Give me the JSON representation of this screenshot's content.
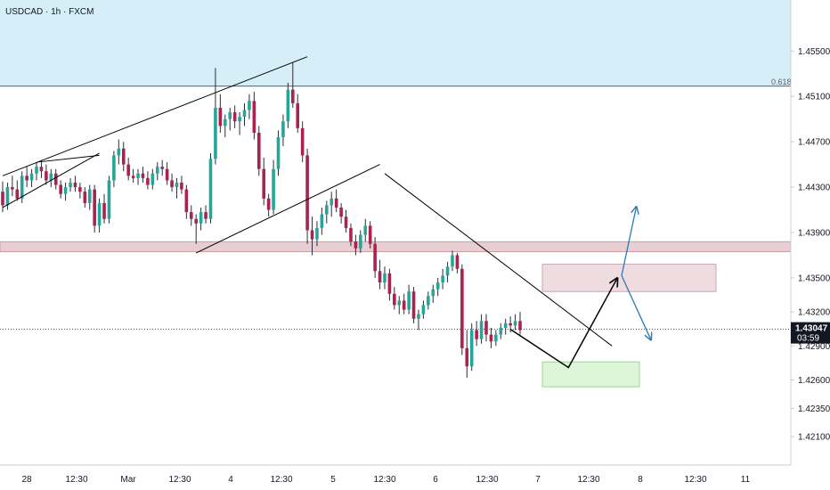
{
  "ticker": "USDCAD · 1h · FXCM",
  "colors": {
    "up": "#26a69a",
    "down": "#a8234f",
    "wick": "#2a2e39",
    "fib_zone": "#d5eef7",
    "resistance_band": "#e8cdd2",
    "supply_box": "#efdce0",
    "demand_box": "#dcf5d6",
    "arrow": "#2a7ab7",
    "path": "#000000",
    "price_tag": "#131722"
  },
  "chart_data": {
    "type": "candlestick",
    "ylim": [
      1.4185,
      1.4595
    ],
    "y_ticks": [
      "1.45500",
      "1.45100",
      "1.44700",
      "1.44300",
      "1.43900",
      "1.43500",
      "1.43200",
      "1.42900",
      "1.42600",
      "1.42350",
      "1.42100"
    ],
    "x_ticks": [
      "28",
      "12:30",
      "Mar",
      "12:30",
      "4",
      "12:30",
      "5",
      "12:30",
      "6",
      "12:30",
      "7",
      "12:30",
      "8",
      "12:30",
      "11"
    ],
    "fib_level": {
      "label": "0.618",
      "price": 1.4519
    },
    "current_price": {
      "label": "1.43047",
      "timer": "03:59",
      "value": 1.43047
    },
    "resistance_band": [
      1.4373,
      1.4382
    ],
    "supply_zone": [
      1.4338,
      1.4362
    ],
    "demand_zone": [
      1.4254,
      1.4276
    ],
    "candles": [
      [
        1.4426,
        1.4435,
        1.4408,
        1.4414
      ],
      [
        1.4414,
        1.4434,
        1.441,
        1.443
      ],
      [
        1.443,
        1.444,
        1.4422,
        1.4428
      ],
      [
        1.4428,
        1.4436,
        1.4418,
        1.442
      ],
      [
        1.442,
        1.4444,
        1.4416,
        1.444
      ],
      [
        1.444,
        1.4448,
        1.443,
        1.4436
      ],
      [
        1.4436,
        1.4446,
        1.443,
        1.4442
      ],
      [
        1.4442,
        1.4452,
        1.4436,
        1.4448
      ],
      [
        1.4448,
        1.4454,
        1.4438,
        1.4444
      ],
      [
        1.4444,
        1.445,
        1.4432,
        1.4436
      ],
      [
        1.4436,
        1.4446,
        1.443,
        1.4442
      ],
      [
        1.4442,
        1.4446,
        1.4428,
        1.4432
      ],
      [
        1.4432,
        1.4436,
        1.442,
        1.4424
      ],
      [
        1.4424,
        1.4434,
        1.4418,
        1.443
      ],
      [
        1.443,
        1.4438,
        1.4426,
        1.4434
      ],
      [
        1.4434,
        1.444,
        1.4426,
        1.443
      ],
      [
        1.443,
        1.4434,
        1.442,
        1.4426
      ],
      [
        1.4426,
        1.443,
        1.4412,
        1.4416
      ],
      [
        1.4416,
        1.4432,
        1.441,
        1.4428
      ],
      [
        1.4428,
        1.4432,
        1.439,
        1.4396
      ],
      [
        1.4396,
        1.442,
        1.439,
        1.4416
      ],
      [
        1.4416,
        1.4424,
        1.4398,
        1.4402
      ],
      [
        1.4402,
        1.444,
        1.4398,
        1.4436
      ],
      [
        1.4436,
        1.4462,
        1.443,
        1.4458
      ],
      [
        1.4458,
        1.4472,
        1.445,
        1.4464
      ],
      [
        1.4464,
        1.447,
        1.4444,
        1.445
      ],
      [
        1.445,
        1.4456,
        1.4436,
        1.444
      ],
      [
        1.444,
        1.4446,
        1.4434,
        1.4438
      ],
      [
        1.4438,
        1.4446,
        1.4432,
        1.4442
      ],
      [
        1.4442,
        1.4448,
        1.4434,
        1.4438
      ],
      [
        1.4438,
        1.4444,
        1.4428,
        1.4432
      ],
      [
        1.4432,
        1.4446,
        1.4428,
        1.4442
      ],
      [
        1.4442,
        1.4452,
        1.4436,
        1.4448
      ],
      [
        1.4448,
        1.4454,
        1.444,
        1.4446
      ],
      [
        1.4446,
        1.4452,
        1.4432,
        1.4436
      ],
      [
        1.4436,
        1.4442,
        1.4426,
        1.443
      ],
      [
        1.443,
        1.4438,
        1.442,
        1.4434
      ],
      [
        1.4434,
        1.444,
        1.4424,
        1.4428
      ],
      [
        1.4428,
        1.4432,
        1.4402,
        1.4408
      ],
      [
        1.4408,
        1.4414,
        1.4396,
        1.4402
      ],
      [
        1.4402,
        1.4406,
        1.438,
        1.4398
      ],
      [
        1.4398,
        1.4412,
        1.4392,
        1.4408
      ],
      [
        1.4408,
        1.4414,
        1.4398,
        1.4402
      ],
      [
        1.4402,
        1.446,
        1.4398,
        1.4455
      ],
      [
        1.4455,
        1.4535,
        1.445,
        1.45
      ],
      [
        1.45,
        1.4512,
        1.4478,
        1.4484
      ],
      [
        1.4484,
        1.4494,
        1.4474,
        1.449
      ],
      [
        1.449,
        1.45,
        1.448,
        1.4496
      ],
      [
        1.4496,
        1.4502,
        1.4482,
        1.4488
      ],
      [
        1.4488,
        1.4496,
        1.4476,
        1.4492
      ],
      [
        1.4492,
        1.4504,
        1.4484,
        1.4498
      ],
      [
        1.4498,
        1.4512,
        1.449,
        1.4506
      ],
      [
        1.4506,
        1.4514,
        1.4472,
        1.4478
      ],
      [
        1.4478,
        1.4484,
        1.444,
        1.4446
      ],
      [
        1.4446,
        1.4456,
        1.4414,
        1.442
      ],
      [
        1.442,
        1.4424,
        1.4404,
        1.441
      ],
      [
        1.441,
        1.4454,
        1.4406,
        1.4446
      ],
      [
        1.4446,
        1.448,
        1.444,
        1.4474
      ],
      [
        1.4474,
        1.4494,
        1.4466,
        1.4488
      ],
      [
        1.4488,
        1.4522,
        1.4482,
        1.4516
      ],
      [
        1.4516,
        1.454,
        1.45,
        1.4504
      ],
      [
        1.4504,
        1.4512,
        1.4478,
        1.4482
      ],
      [
        1.4482,
        1.4488,
        1.4452,
        1.4458
      ],
      [
        1.4458,
        1.4464,
        1.438,
        1.4392
      ],
      [
        1.4392,
        1.4404,
        1.437,
        1.4384
      ],
      [
        1.4384,
        1.44,
        1.4378,
        1.4394
      ],
      [
        1.4394,
        1.4412,
        1.4388,
        1.4406
      ],
      [
        1.4406,
        1.4418,
        1.4398,
        1.4414
      ],
      [
        1.4414,
        1.4426,
        1.4404,
        1.442
      ],
      [
        1.442,
        1.4428,
        1.4408,
        1.4412
      ],
      [
        1.4412,
        1.4416,
        1.4398,
        1.4404
      ],
      [
        1.4404,
        1.441,
        1.439,
        1.4394
      ],
      [
        1.4394,
        1.4398,
        1.4378,
        1.4382
      ],
      [
        1.4382,
        1.4388,
        1.437,
        1.4376
      ],
      [
        1.4376,
        1.4392,
        1.4372,
        1.4388
      ],
      [
        1.4388,
        1.4402,
        1.4382,
        1.4396
      ],
      [
        1.4396,
        1.44,
        1.4376,
        1.438
      ],
      [
        1.438,
        1.4386,
        1.435,
        1.4356
      ],
      [
        1.4356,
        1.4366,
        1.434,
        1.4346
      ],
      [
        1.4346,
        1.436,
        1.434,
        1.4354
      ],
      [
        1.4354,
        1.4358,
        1.433,
        1.4336
      ],
      [
        1.4336,
        1.4342,
        1.4322,
        1.4326
      ],
      [
        1.4326,
        1.4334,
        1.4318,
        1.433
      ],
      [
        1.433,
        1.4336,
        1.4318,
        1.4322
      ],
      [
        1.4322,
        1.4344,
        1.4318,
        1.4338
      ],
      [
        1.4338,
        1.4342,
        1.431,
        1.4314
      ],
      [
        1.4314,
        1.4322,
        1.4304,
        1.4318
      ],
      [
        1.4318,
        1.433,
        1.4314,
        1.4326
      ],
      [
        1.4326,
        1.4338,
        1.4322,
        1.4334
      ],
      [
        1.4334,
        1.4344,
        1.4328,
        1.434
      ],
      [
        1.434,
        1.435,
        1.4334,
        1.4346
      ],
      [
        1.4346,
        1.4358,
        1.434,
        1.4352
      ],
      [
        1.4352,
        1.4364,
        1.4346,
        1.436
      ],
      [
        1.436,
        1.4374,
        1.4356,
        1.437
      ],
      [
        1.437,
        1.4372,
        1.4354,
        1.4358
      ],
      [
        1.4358,
        1.4362,
        1.4282,
        1.4288
      ],
      [
        1.4288,
        1.4304,
        1.4262,
        1.4272
      ],
      [
        1.4272,
        1.431,
        1.4268,
        1.4304
      ],
      [
        1.4304,
        1.4312,
        1.429,
        1.4296
      ],
      [
        1.4296,
        1.4318,
        1.4292,
        1.4312
      ],
      [
        1.4312,
        1.4318,
        1.4294,
        1.43
      ],
      [
        1.43,
        1.4306,
        1.4288,
        1.4294
      ],
      [
        1.4294,
        1.4304,
        1.429,
        1.43
      ],
      [
        1.43,
        1.431,
        1.4296,
        1.4306
      ],
      [
        1.4306,
        1.4314,
        1.43,
        1.431
      ],
      [
        1.431,
        1.4316,
        1.4302,
        1.4308
      ],
      [
        1.4308,
        1.4318,
        1.4304,
        1.4312
      ],
      [
        1.4312,
        1.432,
        1.43,
        1.4304
      ]
    ],
    "trendlines": [
      {
        "name": "upper-channel-line",
        "points": [
          [
            0,
            1.444
          ],
          [
            63,
            1.4545
          ]
        ]
      },
      {
        "name": "lower-channel-line",
        "points": [
          [
            0,
            1.4412
          ],
          [
            20,
            1.446
          ]
        ]
      },
      {
        "name": "channel-inner-line",
        "points": [
          [
            7,
            1.4452
          ],
          [
            20,
            1.4458
          ]
        ]
      },
      {
        "name": "lower-trend-line",
        "points": [
          [
            40,
            1.4372
          ],
          [
            78,
            1.445
          ]
        ]
      },
      {
        "name": "descending-line",
        "points": [
          [
            79,
            1.4442
          ],
          [
            126,
            1.429
          ]
        ]
      }
    ],
    "projection_path": [
      [
        105,
        1.43047
      ],
      [
        117,
        1.4271
      ],
      [
        127,
        1.4349
      ]
    ],
    "scenario_arrows": [
      {
        "name": "bullish-arrow",
        "points": [
          [
            128,
            1.4352
          ],
          [
            131,
            1.4412
          ]
        ]
      },
      {
        "name": "bearish-arrow",
        "points": [
          [
            128,
            1.4352
          ],
          [
            134,
            1.4296
          ]
        ]
      }
    ]
  }
}
